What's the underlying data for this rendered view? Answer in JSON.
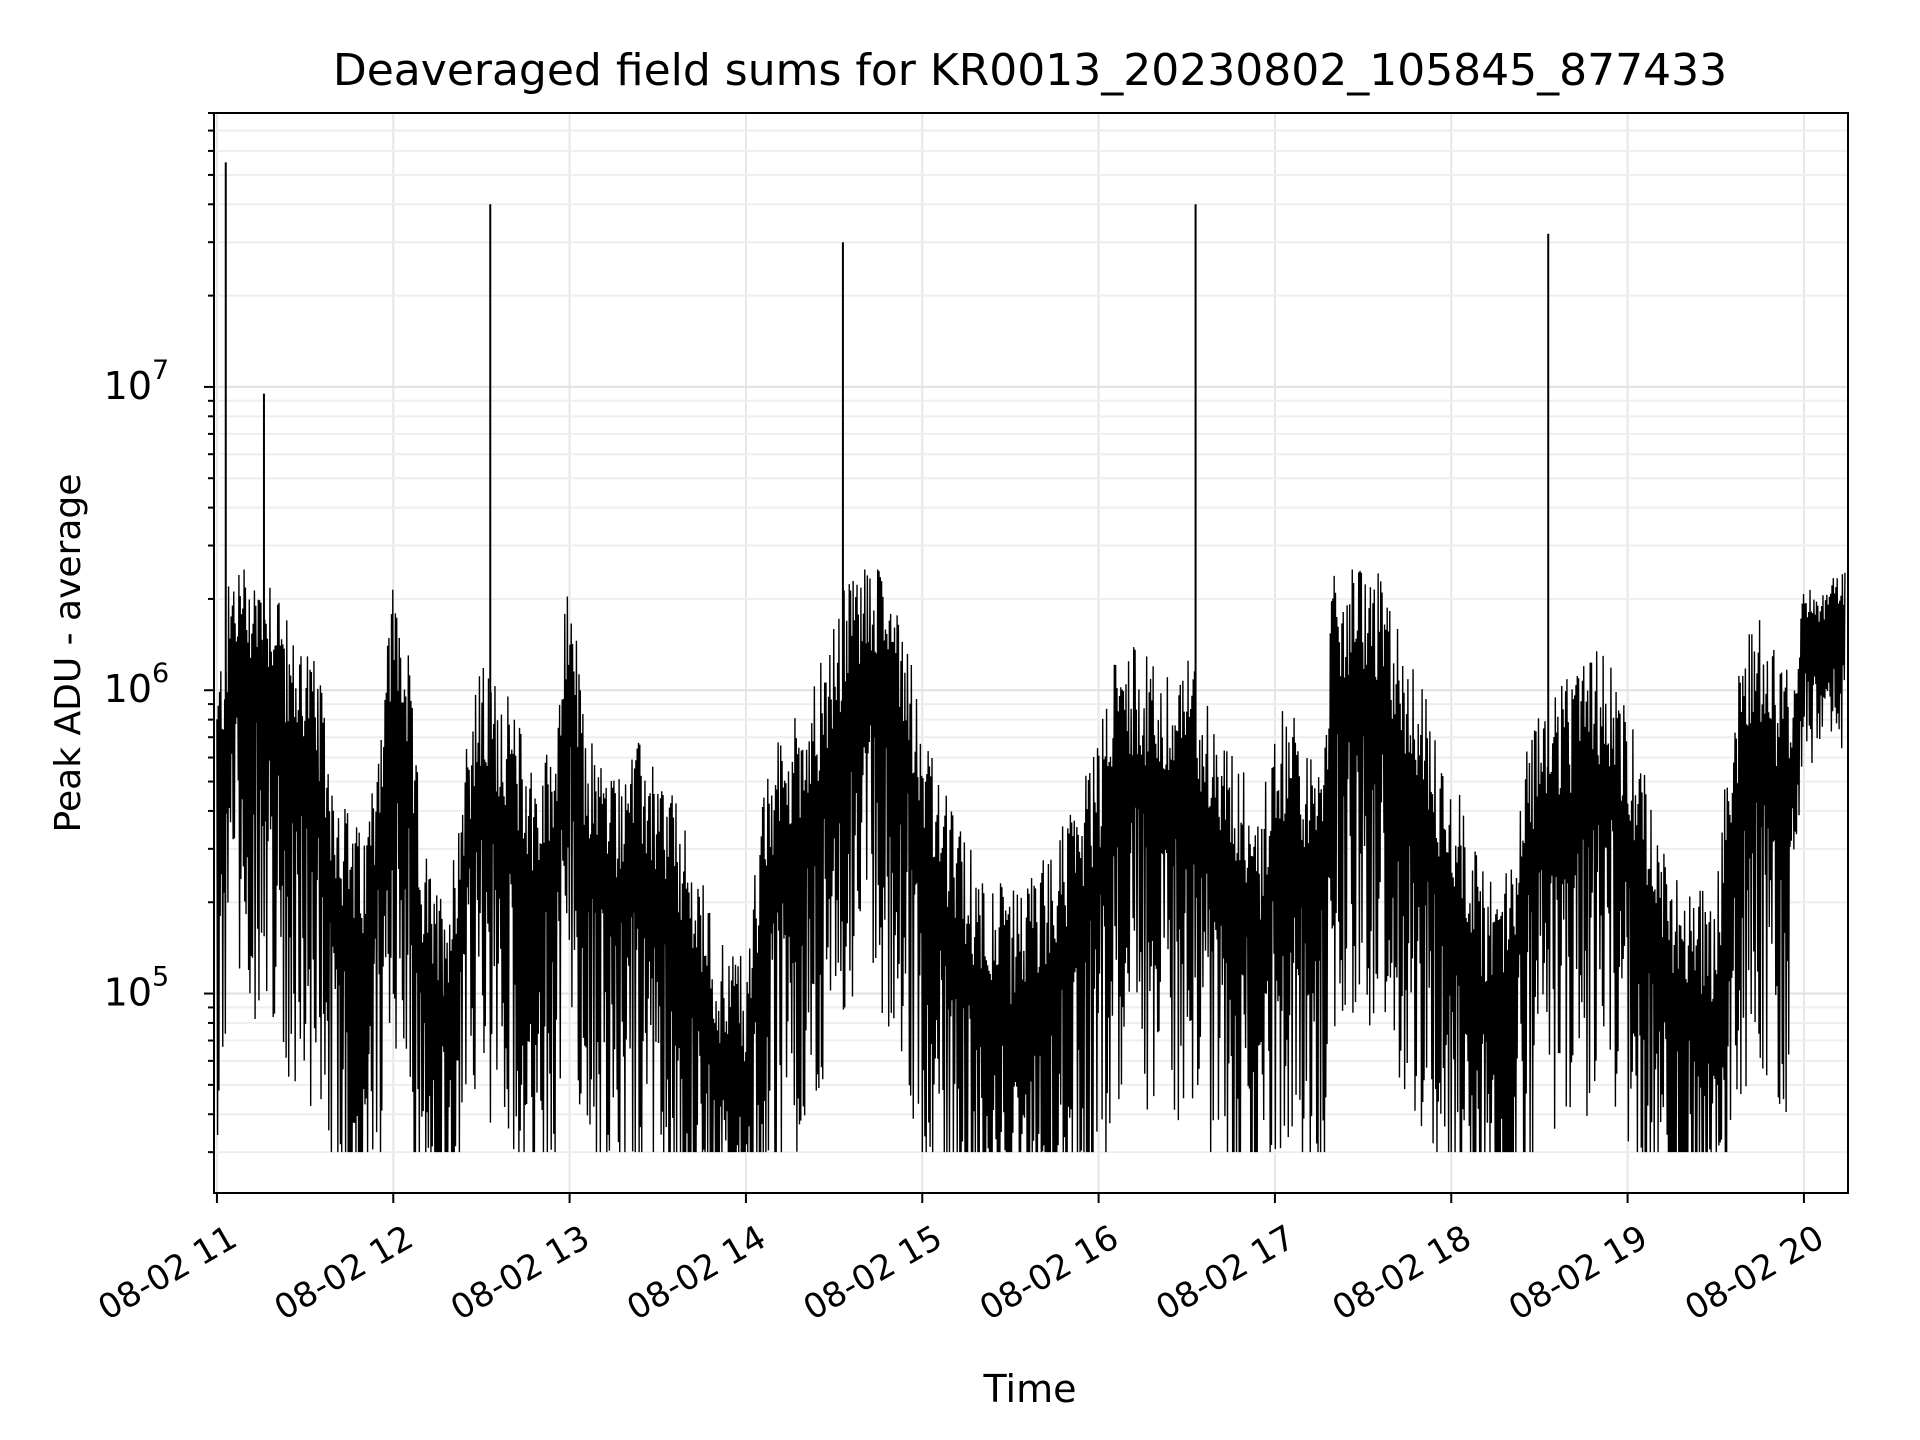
{
  "chart_data": {
    "type": "line",
    "title": "Deaveraged field sums for KR0013_20230802_105845_877433",
    "xlabel": "Time",
    "ylabel": "Peak ADU - average",
    "yscale": "log",
    "grid": true,
    "xlim": [
      "08-02 10:59",
      "08-02 20:15"
    ],
    "ylim": [
      22000,
      80000000
    ],
    "x_ticks": [
      "08-02 11",
      "08-02 12",
      "08-02 13",
      "08-02 14",
      "08-02 15",
      "08-02 16",
      "08-02 17",
      "08-02 18",
      "08-02 19",
      "08-02 20"
    ],
    "y_ticks": [
      {
        "base": "10",
        "exp": "5",
        "value": 100000
      },
      {
        "base": "10",
        "exp": "6",
        "value": 1000000
      },
      {
        "base": "10",
        "exp": "7",
        "value": 10000000
      }
    ],
    "line_color": "#000000",
    "series": [
      {
        "x": [
          "08-02 11:00",
          "08-02 11:05",
          "08-02 11:10",
          "08-02 11:15",
          "08-02 11:20",
          "08-02 11:25",
          "08-02 11:30",
          "08-02 11:35",
          "08-02 11:40",
          "08-02 11:45",
          "08-02 11:50",
          "08-02 11:55",
          "08-02 12:00",
          "08-02 12:05",
          "08-02 12:10",
          "08-02 12:15",
          "08-02 12:20",
          "08-02 12:25",
          "08-02 12:30",
          "08-02 12:35",
          "08-02 12:40",
          "08-02 12:45",
          "08-02 12:50",
          "08-02 12:55",
          "08-02 13:00",
          "08-02 13:05",
          "08-02 13:10",
          "08-02 13:15",
          "08-02 13:20",
          "08-02 13:25",
          "08-02 13:30",
          "08-02 13:35",
          "08-02 13:40",
          "08-02 13:45",
          "08-02 13:50",
          "08-02 13:55",
          "08-02 14:00",
          "08-02 14:05",
          "08-02 14:10",
          "08-02 14:15",
          "08-02 14:20",
          "08-02 14:25",
          "08-02 14:30",
          "08-02 14:35",
          "08-02 14:40",
          "08-02 14:45",
          "08-02 14:50",
          "08-02 14:55",
          "08-02 15:00",
          "08-02 15:05",
          "08-02 15:10",
          "08-02 15:15",
          "08-02 15:20",
          "08-02 15:25",
          "08-02 15:30",
          "08-02 15:35",
          "08-02 15:40",
          "08-02 15:45",
          "08-02 15:50",
          "08-02 15:55",
          "08-02 16:00",
          "08-02 16:05",
          "08-02 16:10",
          "08-02 16:15",
          "08-02 16:20",
          "08-02 16:25",
          "08-02 16:30",
          "08-02 16:35",
          "08-02 16:40",
          "08-02 16:45",
          "08-02 16:50",
          "08-02 16:55",
          "08-02 17:00",
          "08-02 17:05",
          "08-02 17:10",
          "08-02 17:15",
          "08-02 17:20",
          "08-02 17:25",
          "08-02 17:30",
          "08-02 17:35",
          "08-02 17:40",
          "08-02 17:45",
          "08-02 17:50",
          "08-02 17:55",
          "08-02 18:00",
          "08-02 18:05",
          "08-02 18:10",
          "08-02 18:15",
          "08-02 18:20",
          "08-02 18:25",
          "08-02 18:30",
          "08-02 18:35",
          "08-02 18:40",
          "08-02 18:45",
          "08-02 18:50",
          "08-02 18:55",
          "08-02 19:00",
          "08-02 19:05",
          "08-02 19:10",
          "08-02 19:15",
          "08-02 19:20",
          "08-02 19:25",
          "08-02 19:30",
          "08-02 19:35",
          "08-02 19:40",
          "08-02 19:45",
          "08-02 19:50",
          "08-02 19:55",
          "08-02 20:00",
          "08-02 20:05",
          "08-02 20:10",
          "08-02 20:14"
        ],
        "y": [
          400000,
          1000000,
          1100000,
          950000,
          1000000,
          550000,
          600000,
          400000,
          200000,
          150000,
          120000,
          300000,
          900000,
          500000,
          120000,
          80000,
          100000,
          300000,
          450000,
          400000,
          350000,
          250000,
          200000,
          300000,
          1000000,
          280000,
          250000,
          200000,
          250000,
          250000,
          200000,
          180000,
          120000,
          90000,
          60000,
          55000,
          50000,
          150000,
          250000,
          300000,
          350000,
          450000,
          600000,
          900000,
          1000000,
          1100000,
          900000,
          600000,
          300000,
          200000,
          150000,
          120000,
          100000,
          90000,
          80000,
          90000,
          100000,
          120000,
          150000,
          200000,
          250000,
          500000,
          550000,
          500000,
          450000,
          400000,
          500000,
          400000,
          300000,
          250000,
          200000,
          150000,
          300000,
          350000,
          250000,
          200000,
          900000,
          950000,
          1000000,
          900000,
          700000,
          500000,
          400000,
          250000,
          200000,
          150000,
          100000,
          90000,
          100000,
          250000,
          350000,
          400000,
          400000,
          450000,
          500000,
          500000,
          300000,
          250000,
          120000,
          100000,
          90000,
          85000,
          80000,
          300000,
          600000,
          700000,
          500000,
          450000,
          1500000,
          1400000,
          1600000,
          1700000
        ]
      },
      {
        "name": "",
        "x": [
          "08-02 11:03",
          "08-02 11:16",
          "08-02 12:33",
          "08-02 14:33",
          "08-02 16:33",
          "08-02 18:33"
        ],
        "y": [
          55000000,
          9500000,
          40000000,
          30000000,
          40000000,
          32000000
        ]
      }
    ]
  }
}
